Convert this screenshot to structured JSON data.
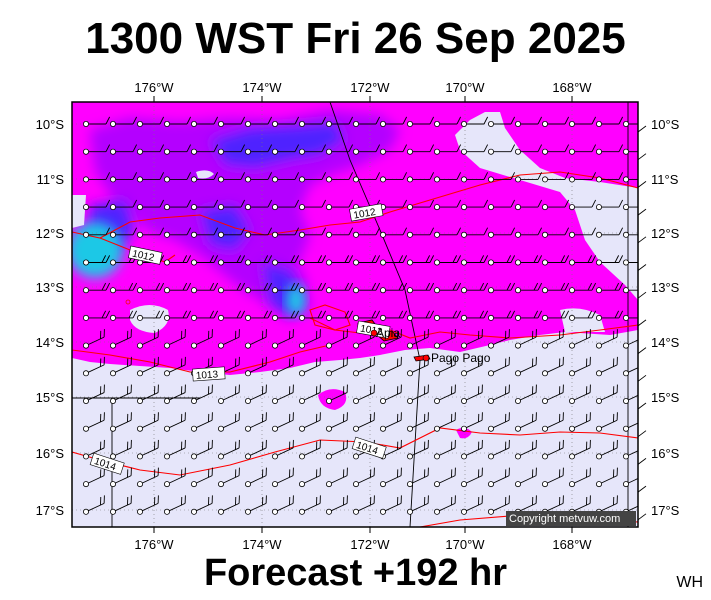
{
  "title": "1300 WST Fri 26 Sep 2025",
  "footer": "Forecast +192 hr",
  "code": "WH",
  "copyright": "Copyright metvuw.com",
  "lon_ticks": [
    "176°W",
    "174°W",
    "172°W",
    "170°W",
    "168°W"
  ],
  "lat_ticks": [
    "10°S",
    "11°S",
    "12°S",
    "13°S",
    "14°S",
    "15°S",
    "16°S",
    "17°S"
  ],
  "isobar_labels": [
    "1012",
    "1012",
    "1012",
    "1013",
    "1014",
    "1014"
  ],
  "places": [
    "Apia",
    "Pago Pago"
  ],
  "colors": {
    "rain_light": "#ff00ff",
    "rain_medium": "#b400ff",
    "rain_heavy": "#4f20ff",
    "rain_extreme": "#1ec8e6",
    "background": "#e6e6fa",
    "isobar": "#ff0000",
    "land": "#ff0000"
  }
}
